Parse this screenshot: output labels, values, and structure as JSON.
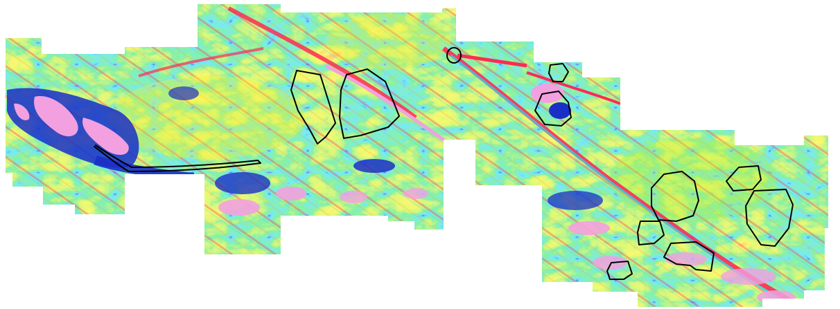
{
  "map": {
    "kind": "geophysical survey grid image (magnetic / gravity anomaly style color map)",
    "palette": {
      "very_low": "#1a2fc8",
      "low": "#2fd0f0",
      "mid_low": "#3fe05a",
      "mid": "#b8f030",
      "mid_high": "#f6f02a",
      "high": "#ff9a30",
      "very_high": "#ff2a55",
      "peak": "#f2a0e0"
    },
    "outline_color": "#000000",
    "annotations": {
      "closed_outlines": 14,
      "open_strips": 1
    }
  }
}
